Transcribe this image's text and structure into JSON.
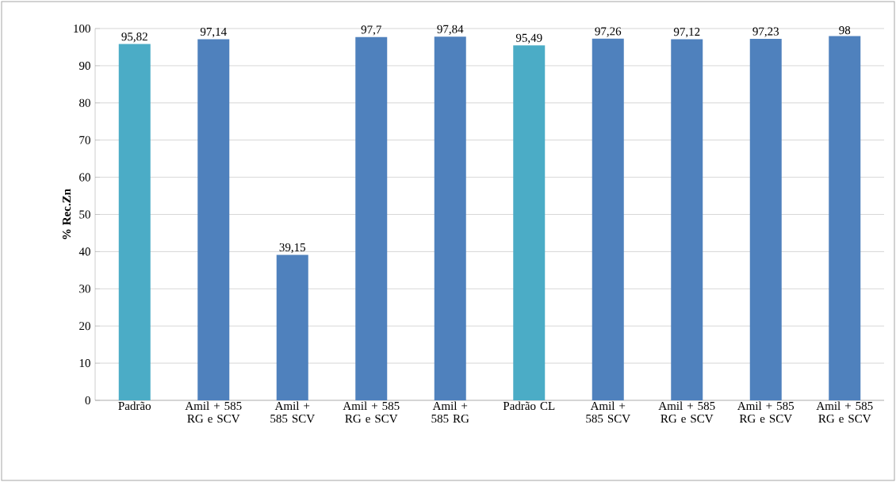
{
  "chart_data": {
    "type": "bar",
    "ylabel": "% Rec.Zn",
    "categories": [
      "Padrão",
      "Amil + 585 RG e SCV",
      "Amil + 585 SCV",
      "Amil + 585 RG e SCV",
      "Amil + 585 RG",
      "Padrão CL",
      "Amil + 585 SCV",
      "Amil + 585 RG e SCV",
      "Amil + 585 RG e SCV",
      "Amil + 585 RG e SCV"
    ],
    "values": [
      95.82,
      97.14,
      39.15,
      97.7,
      97.84,
      95.49,
      97.26,
      97.12,
      97.23,
      98
    ],
    "colors": [
      "#4bacc6",
      "#4f81bd",
      "#4f81bd",
      "#4f81bd",
      "#4f81bd",
      "#4bacc6",
      "#4f81bd",
      "#4f81bd",
      "#4f81bd",
      "#4f81bd"
    ],
    "value_labels": [
      "95,82",
      "97,14",
      "39,15",
      "97,7",
      "97,84",
      "95,49",
      "97,26",
      "97,12",
      "97,23",
      "98"
    ],
    "ylim": [
      0,
      100
    ],
    "yticks": [
      0,
      10,
      20,
      30,
      40,
      50,
      60,
      70,
      80,
      90,
      100
    ],
    "grid": "y"
  }
}
